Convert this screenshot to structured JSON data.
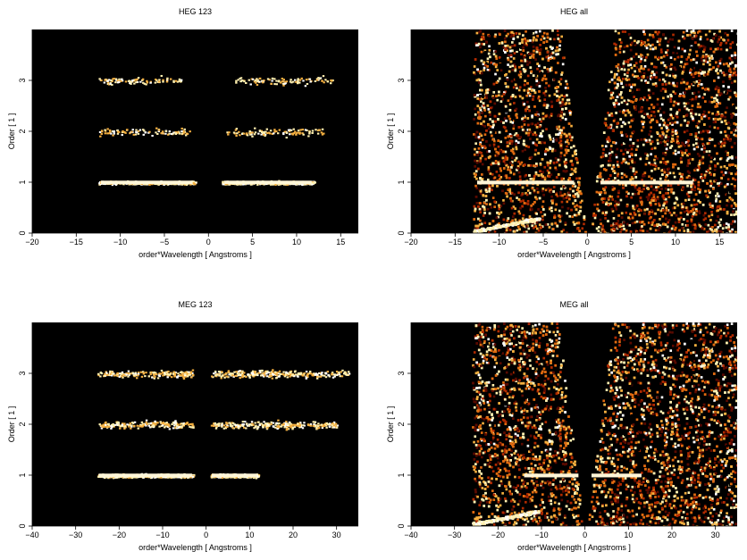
{
  "chart_data": [
    {
      "type": "heatmap",
      "title": "HEG 123",
      "xlabel": "order*Wavelength [ Angstroms ]",
      "ylabel": "Order [ 1 ]",
      "xlim": [
        -20,
        17
      ],
      "ylim": [
        0,
        4
      ],
      "xticks": [
        -20,
        -15,
        -10,
        -5,
        0,
        5,
        10,
        15
      ],
      "yticks": [
        0,
        1,
        2,
        3
      ],
      "colormap": [
        "#000000",
        "#5a0a00",
        "#b02a00",
        "#e06a10",
        "#f5b040",
        "#fff0b0",
        "#ffffff"
      ],
      "bands": [
        {
          "order": 1,
          "x_ranges": [
            [
              -12.5,
              -1.5
            ],
            [
              1.5,
              12
            ]
          ],
          "intensity": "high"
        },
        {
          "order": 2,
          "x_ranges": [
            [
              -12.5,
              -2
            ],
            [
              2,
              13
            ]
          ],
          "intensity": "low"
        },
        {
          "order": 3,
          "x_ranges": [
            [
              -12.5,
              -3
            ],
            [
              3,
              14
            ]
          ],
          "intensity": "low"
        }
      ]
    },
    {
      "type": "heatmap",
      "title": "HEG all",
      "xlabel": "order*Wavelength [ Angstroms ]",
      "ylabel": "Order [ 1 ]",
      "xlim": [
        -20,
        17
      ],
      "ylim": [
        0,
        4
      ],
      "xticks": [
        -20,
        -15,
        -10,
        -5,
        0,
        5,
        10,
        15
      ],
      "yticks": [
        0,
        1,
        2,
        3
      ],
      "colormap": [
        "#000000",
        "#5a0a00",
        "#b02a00",
        "#e06a10",
        "#f5b040",
        "#fff0b0",
        "#ffffff"
      ],
      "data_region_x": [
        -13,
        17
      ],
      "bright_lines": [
        {
          "order": 1,
          "x_ranges": [
            [
              -12.5,
              -1.5
            ],
            [
              1.5,
              12
            ]
          ]
        }
      ]
    },
    {
      "type": "heatmap",
      "title": "MEG 123",
      "xlabel": "order*Wavelength [ Angstroms ]",
      "ylabel": "Order [ 1 ]",
      "xlim": [
        -40,
        35
      ],
      "ylim": [
        0,
        4
      ],
      "xticks": [
        -40,
        -30,
        -20,
        -10,
        0,
        10,
        20,
        30
      ],
      "yticks": [
        0,
        1,
        2,
        3
      ],
      "colormap": [
        "#000000",
        "#5a0a00",
        "#b02a00",
        "#e06a10",
        "#f5b040",
        "#fff0b0",
        "#ffffff"
      ],
      "bands": [
        {
          "order": 1,
          "x_ranges": [
            [
              -25,
              -3
            ],
            [
              1,
              12
            ]
          ],
          "intensity": "high"
        },
        {
          "order": 2,
          "x_ranges": [
            [
              -25,
              -3
            ],
            [
              1,
              30
            ]
          ],
          "intensity": "low"
        },
        {
          "order": 3,
          "x_ranges": [
            [
              -25,
              -3
            ],
            [
              1,
              33
            ]
          ],
          "intensity": "low"
        }
      ]
    },
    {
      "type": "heatmap",
      "title": "MEG all",
      "xlabel": "order*Wavelength [ Angstroms ]",
      "ylabel": "Order [ 1 ]",
      "xlim": [
        -40,
        35
      ],
      "ylim": [
        0,
        4
      ],
      "xticks": [
        -40,
        -30,
        -20,
        -10,
        0,
        10,
        20,
        30
      ],
      "yticks": [
        0,
        1,
        2,
        3
      ],
      "colormap": [
        "#000000",
        "#5a0a00",
        "#b02a00",
        "#e06a10",
        "#f5b040",
        "#fff0b0",
        "#ffffff"
      ],
      "data_region_x": [
        -26,
        35
      ],
      "bright_lines": [
        {
          "order": 1,
          "x_ranges": [
            [
              -14,
              -1.5
            ],
            [
              1.5,
              13
            ]
          ]
        }
      ]
    }
  ]
}
